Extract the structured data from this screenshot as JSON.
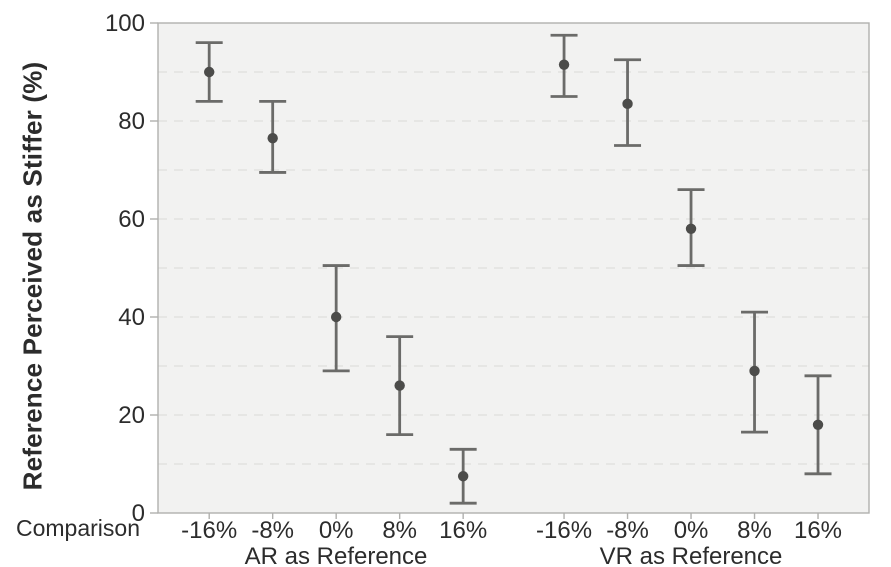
{
  "chart_data": {
    "type": "scatter",
    "subtype": "point-estimates-with-error-bars",
    "title": "",
    "ylabel": "Reference Perceived as Stiffer (%)",
    "xlabel": "Comparison",
    "ylim": [
      0,
      100
    ],
    "yticks": [
      0,
      20,
      40,
      60,
      80,
      100
    ],
    "gridlines": "dashed horizontal every 10 units",
    "legend_position": "none",
    "categories": [
      "-16%",
      "-8%",
      "0%",
      "8%",
      "16%"
    ],
    "groups": [
      {
        "label": "AR as Reference",
        "means": [
          90,
          76.5,
          40,
          26,
          7.5
        ],
        "ci_low": [
          84,
          69.5,
          29,
          16,
          2
        ],
        "ci_high": [
          96,
          84,
          50.5,
          36,
          13
        ]
      },
      {
        "label": "VR as Reference",
        "means": [
          91.5,
          83.5,
          58,
          29,
          18
        ],
        "ci_low": [
          85,
          75,
          50.5,
          16.5,
          8
        ],
        "ci_high": [
          97.5,
          92.5,
          66,
          41,
          28
        ]
      }
    ],
    "colors": {
      "marker": "#4c4c4a",
      "errorbar": "#6b6b69",
      "plot_background": "#f2f2f1",
      "plot_border": "#b0b0ae",
      "gridline": "#e2e2e0",
      "text": "#2c2c2c"
    }
  }
}
